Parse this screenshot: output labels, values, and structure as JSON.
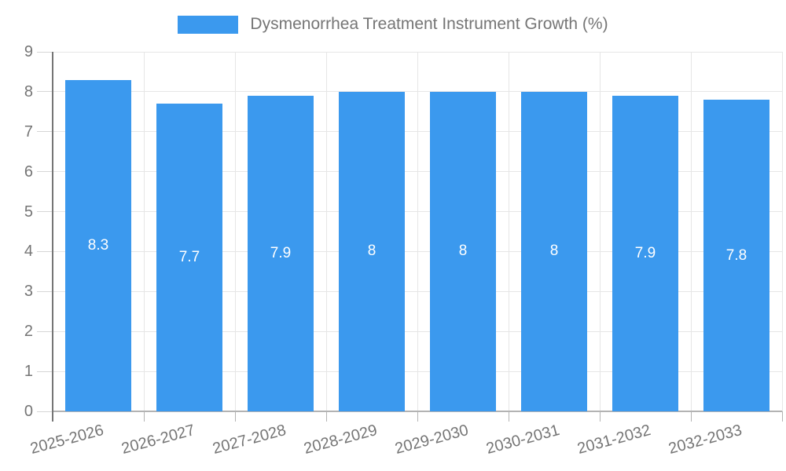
{
  "legend": {
    "label": "Dysmenorrhea Treatment Instrument Growth (%)",
    "swatch_color": "#3b99ee"
  },
  "chart_data": {
    "type": "bar",
    "title": "Dysmenorrhea Treatment Instrument Growth (%)",
    "categories": [
      "2025-2026",
      "2026-2027",
      "2027-2028",
      "2028-2029",
      "2029-2030",
      "2030-2031",
      "2031-2032",
      "2032-2033"
    ],
    "values": [
      8.3,
      7.7,
      7.9,
      8,
      8,
      8,
      7.9,
      7.8
    ],
    "value_labels": [
      "8.3",
      "7.7",
      "7.9",
      "8",
      "8",
      "8",
      "7.9",
      "7.8"
    ],
    "xlabel": "",
    "ylabel": "",
    "ylim": [
      0,
      9
    ],
    "yticks": [
      0,
      1,
      2,
      3,
      4,
      5,
      6,
      7,
      8,
      9
    ],
    "grid": true,
    "legend_position": "top",
    "bar_color": "#3b99ee",
    "value_label_color": "#ffffff",
    "axis_label_color": "#757575",
    "gridline_color": "#e6e6e6"
  }
}
